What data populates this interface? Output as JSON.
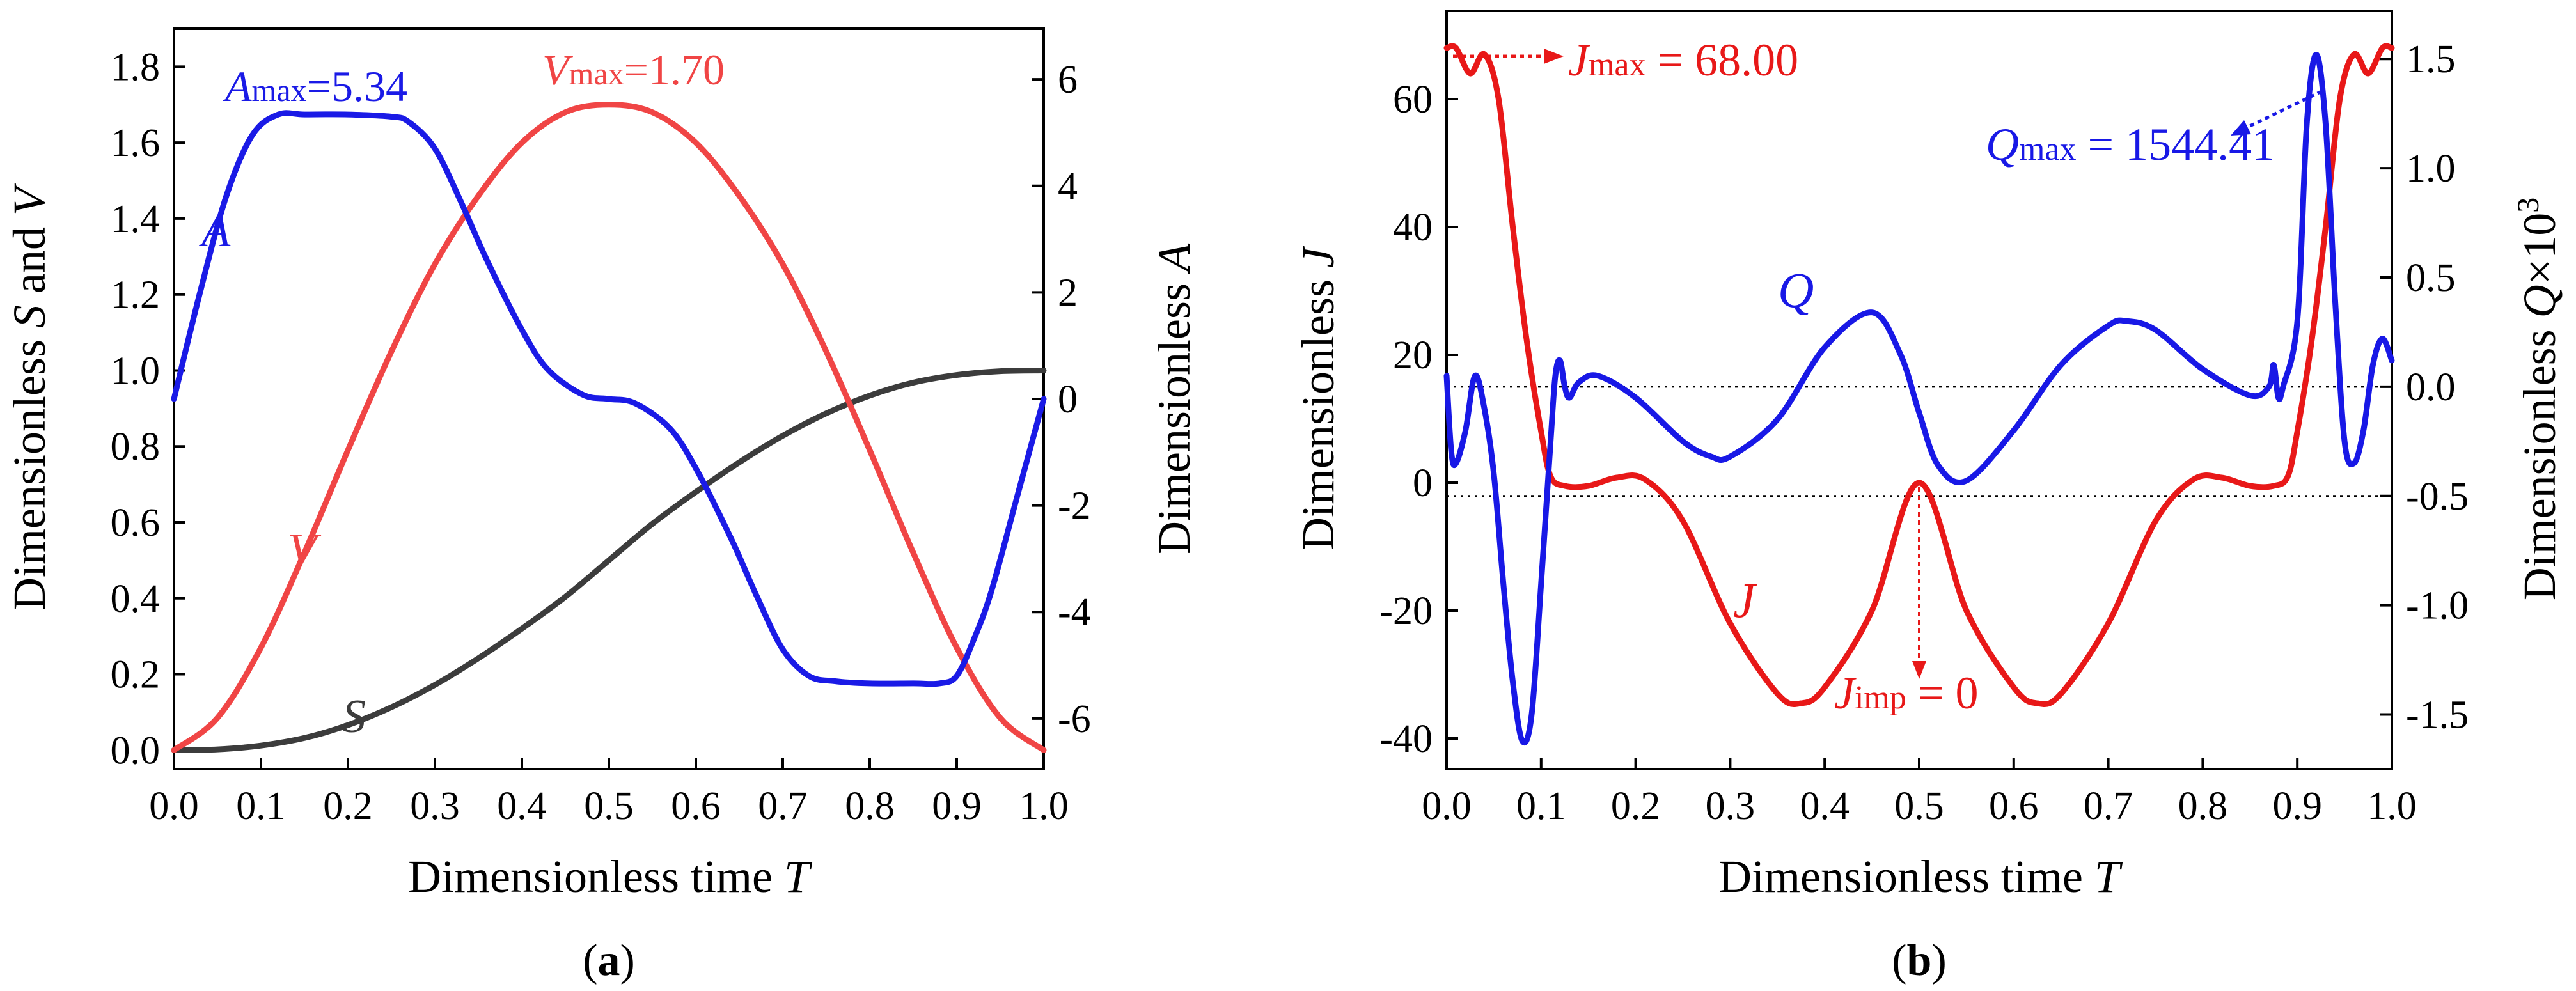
{
  "figure": {
    "caption_a_open": "(",
    "caption_a_letter": "a",
    "caption_a_close": ")",
    "caption_b_open": "(",
    "caption_b_letter": "b",
    "caption_b_close": ")"
  },
  "chart_data": [
    {
      "id": "a",
      "type": "line",
      "xlabel_prefix": "Dimensionless time ",
      "xlabel_var": "T",
      "ylabel_left_prefix": "Dimensionless ",
      "ylabel_left_var1": "S",
      "ylabel_left_and": " and ",
      "ylabel_left_var2": "V",
      "ylabel_right_prefix": "Dimensionless ",
      "ylabel_right_var": "A",
      "xlim": [
        0,
        1.0
      ],
      "ylim_left": [
        -0.05,
        1.9
      ],
      "ylim_right": [
        -6.95,
        6.95
      ],
      "x_ticks": [
        "0.0",
        "0.1",
        "0.2",
        "0.3",
        "0.4",
        "0.5",
        "0.6",
        "0.7",
        "0.8",
        "0.9",
        "1.0"
      ],
      "y_left_ticks": [
        "0.0",
        "0.2",
        "0.4",
        "0.6",
        "0.8",
        "1.0",
        "1.2",
        "1.4",
        "1.6",
        "1.8"
      ],
      "y_right_ticks": [
        "-6",
        "-4",
        "-2",
        "0",
        "2",
        "4",
        "6"
      ],
      "series": [
        {
          "name": "S",
          "axis": "left",
          "color": "#3c3c3c",
          "x": [
            0,
            0.05,
            0.1,
            0.15,
            0.2,
            0.25,
            0.3,
            0.35,
            0.4,
            0.45,
            0.5,
            0.55,
            0.6,
            0.65,
            0.7,
            0.75,
            0.8,
            0.85,
            0.9,
            0.95,
            1.0
          ],
          "values": [
            0,
            0.002,
            0.012,
            0.032,
            0.066,
            0.113,
            0.172,
            0.242,
            0.32,
            0.404,
            0.5,
            0.596,
            0.68,
            0.758,
            0.828,
            0.887,
            0.934,
            0.968,
            0.988,
            0.998,
            1.0
          ]
        },
        {
          "name": "V",
          "axis": "left",
          "color": "#f04545",
          "x": [
            0,
            0.05,
            0.1,
            0.15,
            0.2,
            0.25,
            0.3,
            0.35,
            0.4,
            0.45,
            0.5,
            0.55,
            0.6,
            0.65,
            0.7,
            0.75,
            0.8,
            0.85,
            0.9,
            0.95,
            1.0
          ],
          "values": [
            0,
            0.085,
            0.27,
            0.52,
            0.79,
            1.05,
            1.28,
            1.46,
            1.6,
            1.68,
            1.7,
            1.68,
            1.6,
            1.46,
            1.28,
            1.05,
            0.79,
            0.52,
            0.27,
            0.085,
            0
          ]
        },
        {
          "name": "A",
          "axis": "right",
          "color": "#1a1ae6",
          "x": [
            0,
            0.03,
            0.06,
            0.09,
            0.12,
            0.15,
            0.2,
            0.25,
            0.27,
            0.3,
            0.33,
            0.36,
            0.4,
            0.43,
            0.47,
            0.5,
            0.53,
            0.57,
            0.6,
            0.64,
            0.67,
            0.7,
            0.73,
            0.76,
            0.8,
            0.85,
            0.88,
            0.9,
            0.92,
            0.94,
            0.97,
            1.0
          ],
          "values": [
            0,
            2.0,
            3.8,
            4.95,
            5.34,
            5.34,
            5.34,
            5.3,
            5.2,
            4.7,
            3.7,
            2.6,
            1.3,
            0.55,
            0.08,
            0,
            -0.08,
            -0.55,
            -1.3,
            -2.6,
            -3.7,
            -4.7,
            -5.2,
            -5.3,
            -5.34,
            -5.34,
            -5.34,
            -5.2,
            -4.5,
            -3.6,
            -1.8,
            0
          ]
        }
      ],
      "curve_labels": {
        "S": "S",
        "V": "V",
        "A": "A"
      },
      "annotations": {
        "a_max_var": "A",
        "a_max_sub": "max",
        "a_max_text": "=5.34",
        "v_max_var": "V",
        "v_max_sub": "max",
        "v_max_text": "=1.70"
      }
    },
    {
      "id": "b",
      "type": "line",
      "xlabel_prefix": "Dimensionless time ",
      "xlabel_var": "T",
      "ylabel_left_prefix": "Dimensionless ",
      "ylabel_left_var": "J",
      "ylabel_right_prefix": "Dimensionless ",
      "ylabel_right_var": "Q",
      "ylabel_right_mult": "×10",
      "ylabel_right_exp": "3",
      "xlim": [
        0,
        1.0
      ],
      "ylim_left": [
        -44.8,
        73.8
      ],
      "ylim_right": [
        -1.75,
        1.72
      ],
      "x_ticks": [
        "0.0",
        "0.1",
        "0.2",
        "0.3",
        "0.4",
        "0.5",
        "0.6",
        "0.7",
        "0.8",
        "0.9",
        "1.0"
      ],
      "y_left_ticks": [
        "-40",
        "-20",
        "0",
        "20",
        "40",
        "60"
      ],
      "y_right_ticks": [
        "-1.5",
        "-1.0",
        "-0.5",
        "0.0",
        "0.5",
        "1.0",
        "1.5"
      ],
      "reference_lines_right_axis": [
        0.0,
        -0.5
      ],
      "series": [
        {
          "name": "J",
          "axis": "left",
          "color": "#e81818",
          "x": [
            0,
            0.01,
            0.025,
            0.04,
            0.055,
            0.07,
            0.085,
            0.1,
            0.11,
            0.125,
            0.15,
            0.18,
            0.21,
            0.25,
            0.3,
            0.35,
            0.375,
            0.4,
            0.45,
            0.5,
            0.55,
            0.6,
            0.625,
            0.65,
            0.7,
            0.75,
            0.79,
            0.82,
            0.85,
            0.875,
            0.89,
            0.9,
            0.915,
            0.93,
            0.945,
            0.96,
            0.975,
            0.99,
            1.0
          ],
          "values": [
            68,
            68,
            64,
            67,
            60,
            40,
            22,
            8,
            1,
            -0.5,
            -0.5,
            0.8,
            0.5,
            -6,
            -22,
            -33,
            -34.5,
            -32,
            -20,
            0,
            -20,
            -32,
            -34.5,
            -33,
            -22,
            -6,
            0.5,
            0.8,
            -0.5,
            -0.5,
            1,
            8,
            22,
            40,
            60,
            67,
            64,
            68,
            68
          ]
        },
        {
          "name": "Q",
          "axis": "right",
          "color": "#1818e6",
          "x": [
            0,
            0.005,
            0.01,
            0.02,
            0.03,
            0.04,
            0.05,
            0.06,
            0.07,
            0.08,
            0.09,
            0.1,
            0.11,
            0.115,
            0.12,
            0.125,
            0.13,
            0.14,
            0.16,
            0.2,
            0.25,
            0.28,
            0.3,
            0.35,
            0.4,
            0.45,
            0.48,
            0.5,
            0.52,
            0.55,
            0.6,
            0.65,
            0.7,
            0.72,
            0.75,
            0.8,
            0.85,
            0.87,
            0.875,
            0.88,
            0.885,
            0.9,
            0.91,
            0.92,
            0.93,
            0.94,
            0.95,
            0.96,
            0.97,
            0.98,
            0.99,
            1.0
          ],
          "values": [
            0.05,
            -0.3,
            -0.35,
            -0.2,
            0.05,
            -0.1,
            -0.4,
            -0.9,
            -1.35,
            -1.62,
            -1.5,
            -0.9,
            -0.25,
            0.05,
            0.12,
            0.0,
            -0.05,
            0.02,
            0.05,
            -0.05,
            -0.25,
            -0.32,
            -0.32,
            -0.15,
            0.18,
            0.34,
            0.15,
            -0.12,
            -0.36,
            -0.43,
            -0.2,
            0.1,
            0.28,
            0.3,
            0.26,
            0.08,
            -0.04,
            0.0,
            0.1,
            -0.05,
            0.0,
            0.3,
            1.2,
            1.52,
            1.2,
            0.4,
            -0.25,
            -0.35,
            -0.2,
            0.1,
            0.22,
            0.12
          ]
        }
      ],
      "curve_labels": {
        "J": "J",
        "Q": "Q"
      },
      "annotations": {
        "j_max_var": "J",
        "j_max_sub": "max",
        "j_max_text": " = 68.00",
        "q_max_var": "Q",
        "q_max_sub": "max",
        "q_max_text": " = 1544.41",
        "j_imp_var": "J",
        "j_imp_sub": "imp",
        "j_imp_text": " = 0"
      }
    }
  ]
}
